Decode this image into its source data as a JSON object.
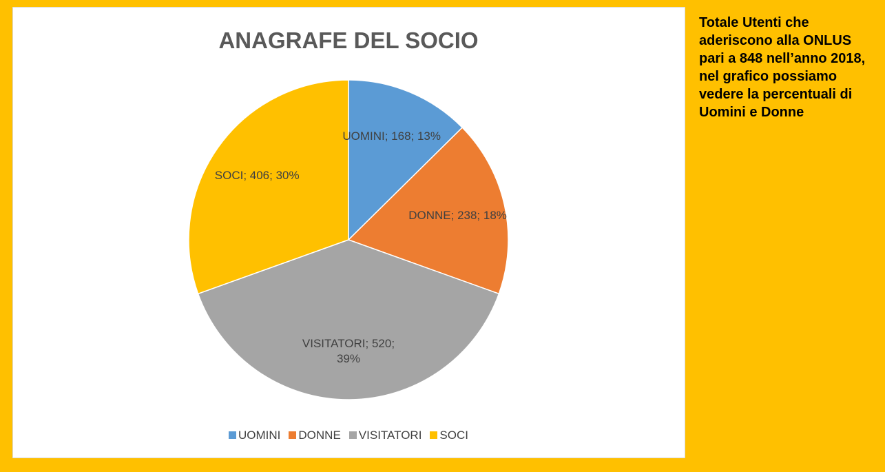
{
  "chart_data": {
    "type": "pie",
    "title": "ANAGRAFE DEL SOCIO",
    "categories": [
      "UOMINI",
      "DONNE",
      "VISITATORI",
      "SOCI"
    ],
    "values": [
      168,
      238,
      520,
      406
    ],
    "value_labels": [
      "UOMINI; 168; 13%",
      "DONNE; 238; 18%",
      "VISITATORI; 520; 39%",
      "SOCI; 406; 30%"
    ],
    "colors": [
      "#5b9bd5",
      "#ed7d31",
      "#a5a5a5",
      "#ffc000"
    ],
    "legend": "bottom",
    "annotation": "Totale Utenti che aderiscono alla ONLUS pari a 848 nell’anno 2018, nel grafico possiamo vedere la percentuali di Uomini e Donne"
  }
}
